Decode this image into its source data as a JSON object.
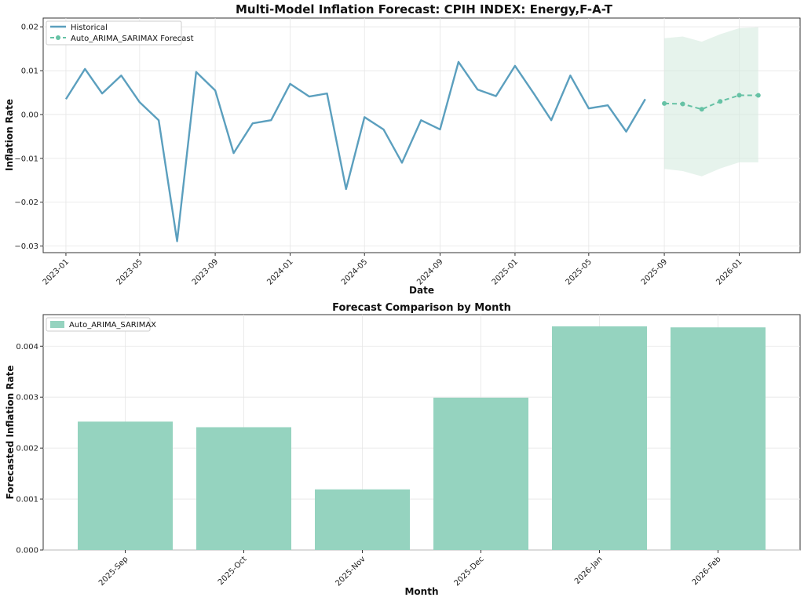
{
  "chart_data": [
    {
      "type": "line",
      "title": "Multi-Model Inflation Forecast: CPIH INDEX: Energy,F-A-T",
      "xlabel": "Date",
      "ylabel": "Inflation Rate",
      "ylim": [
        -0.0315,
        0.022
      ],
      "xlim": [
        "2022-11-25",
        "2026-04-10"
      ],
      "yticks": [
        0.02,
        0.01,
        0.0,
        -0.01,
        -0.02,
        -0.03
      ],
      "ytick_labels": [
        "0.02",
        "0.01",
        "0.00",
        "−0.01",
        "−0.02",
        "−0.03"
      ],
      "xticks": [
        "2023-01-01",
        "2023-05-01",
        "2023-09-01",
        "2024-01-01",
        "2024-05-01",
        "2024-09-01",
        "2025-01-01",
        "2025-05-01",
        "2025-09-01",
        "2026-01-01"
      ],
      "xtick_labels": [
        "2023-01",
        "2023-05",
        "2023-09",
        "2024-01",
        "2024-05",
        "2024-09",
        "2025-01",
        "2025-05",
        "2025-09",
        "2026-01"
      ],
      "grid": true,
      "legend_position": "upper-left",
      "colors": {
        "historical": "#5b9fbe",
        "forecast": "#66c2a5",
        "band": "#d5ebe0"
      },
      "series": [
        {
          "name": "Historical",
          "dates": [
            "2023-01-01",
            "2023-02-01",
            "2023-03-01",
            "2023-04-01",
            "2023-05-01",
            "2023-06-01",
            "2023-07-01",
            "2023-08-01",
            "2023-09-01",
            "2023-10-01",
            "2023-11-01",
            "2023-12-01",
            "2024-01-01",
            "2024-02-01",
            "2024-03-01",
            "2024-04-01",
            "2024-05-01",
            "2024-06-01",
            "2024-07-01",
            "2024-08-01",
            "2024-09-01",
            "2024-10-01",
            "2024-11-01",
            "2024-12-01",
            "2025-01-01",
            "2025-02-01",
            "2025-03-01",
            "2025-04-01",
            "2025-05-01",
            "2025-06-01",
            "2025-07-01",
            "2025-08-01"
          ],
          "values": [
            0.0035,
            0.0104,
            0.0048,
            0.0089,
            0.0028,
            -0.0013,
            -0.0289,
            0.0097,
            0.0055,
            -0.0088,
            -0.002,
            -0.0013,
            0.007,
            0.0041,
            0.0048,
            -0.017,
            -0.0006,
            -0.0034,
            -0.011,
            -0.0013,
            -0.0034,
            0.012,
            0.0057,
            0.0042,
            0.0111,
            0.0047,
            -0.0013,
            0.0089,
            0.0014,
            0.0021,
            -0.0039,
            0.0035
          ]
        },
        {
          "name": "Auto_ARIMA_SARIMAX Forecast",
          "dates": [
            "2025-09-01",
            "2025-10-01",
            "2025-11-01",
            "2025-12-01",
            "2026-01-01",
            "2026-02-01"
          ],
          "values": [
            0.00252,
            0.00241,
            0.00119,
            0.00299,
            0.00439,
            0.00437
          ],
          "upper": [
            0.0174,
            0.0178,
            0.0166,
            0.0183,
            0.0197,
            0.0199
          ],
          "lower": [
            -0.0124,
            -0.0129,
            -0.0141,
            -0.0123,
            -0.0109,
            -0.0109
          ]
        }
      ]
    },
    {
      "type": "bar",
      "title": "Forecast Comparison by Month",
      "xlabel": "Month",
      "ylabel": "Forecasted Inflation Rate",
      "ylim": [
        0,
        0.00462
      ],
      "yticks": [
        0.0,
        0.001,
        0.002,
        0.003,
        0.004
      ],
      "ytick_labels": [
        "0.000",
        "0.001",
        "0.002",
        "0.003",
        "0.004"
      ],
      "grid": true,
      "legend_position": "upper-left",
      "colors": {
        "bar": "#95d3bf"
      },
      "categories": [
        "2025-Sep",
        "2025-Oct",
        "2025-Nov",
        "2025-Dec",
        "2026-Jan",
        "2026-Feb"
      ],
      "series": [
        {
          "name": "Auto_ARIMA_SARIMAX",
          "values": [
            0.00252,
            0.00241,
            0.00119,
            0.00299,
            0.00439,
            0.00437
          ]
        }
      ]
    }
  ]
}
